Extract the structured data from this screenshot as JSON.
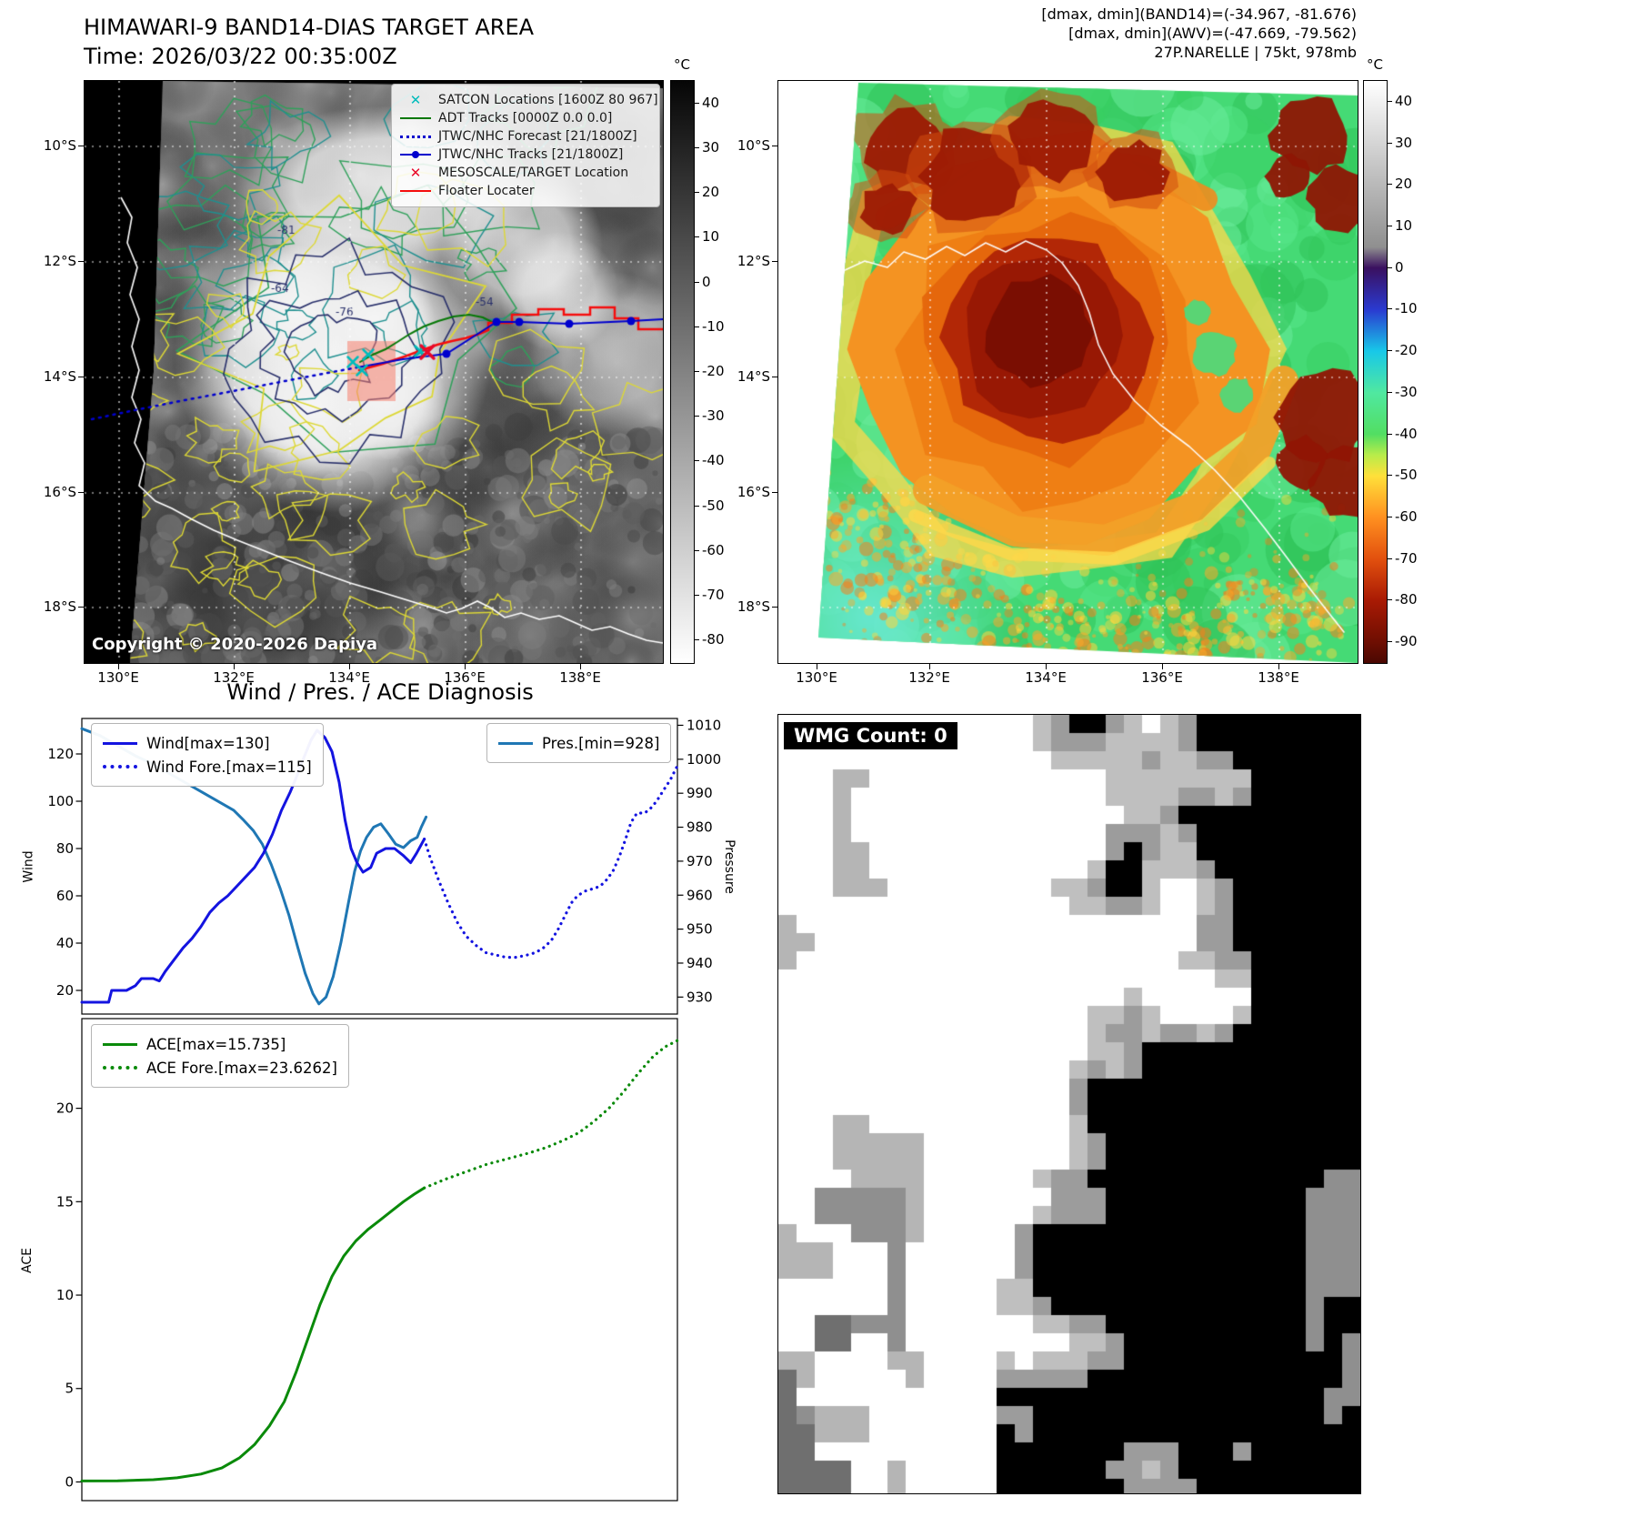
{
  "colors": {
    "wind": "#1414e0",
    "pressure": "#1f77b4",
    "ace": "#0a8a0a",
    "satcon": "#00bcbc",
    "adt_track": "#067806",
    "jtwc": "#0000cd",
    "meso_target": "#e8082a",
    "floater": "#f50d0d",
    "target_area_fill": "#f57f6e"
  },
  "panel_tl": {
    "title": "HIMAWARI-9 BAND14-DIAS TARGET AREA",
    "subtitle": "Time: 2026/03/22 00:35:00Z",
    "copyright": "Copyright © 2020-2026 Dapiya",
    "lat_ticks": [
      "10°S",
      "12°S",
      "14°S",
      "16°S",
      "18°S"
    ],
    "lon_ticks": [
      "130°E",
      "132°E",
      "134°E",
      "136°E",
      "138°E"
    ],
    "contour_labels": [
      "-64",
      "-76",
      "-54",
      "-81"
    ],
    "colorbar": {
      "unit": "°C",
      "ticks": [
        40,
        30,
        20,
        10,
        0,
        -10,
        -20,
        -30,
        -40,
        -50,
        -60,
        -70,
        -80
      ],
      "stops": [
        [
          45,
          "#060606"
        ],
        [
          -85,
          "#ffffff"
        ]
      ]
    },
    "legend": [
      {
        "label": "SATCON Locations [1600Z 80 967]",
        "marker": "x",
        "color": "#00bcbc"
      },
      {
        "label": "ADT Tracks [0000Z 0.0 0.0]",
        "marker": "line",
        "color": "#067806"
      },
      {
        "label": "JTWC/NHC Forecast [21/1800Z]",
        "marker": "dotted",
        "color": "#0000cd"
      },
      {
        "label": "JTWC/NHC Tracks [21/1800Z]",
        "marker": "line-dot",
        "color": "#0000cd"
      },
      {
        "label": "MESOSCALE/TARGET Location",
        "marker": "x",
        "color": "#e8082a"
      },
      {
        "label": "Floater Locater",
        "marker": "line",
        "color": "#f50d0d"
      }
    ]
  },
  "panel_tr": {
    "annotation_line1": "[dmax, dmin](BAND14)=(-34.967, -81.676)",
    "annotation_line2": "[dmax, dmin](AWV)=(-47.669, -79.562)",
    "annotation_line3": "27P.NARELLE | 75kt, 978mb",
    "lat_ticks": [
      "10°S",
      "12°S",
      "14°S",
      "16°S",
      "18°S"
    ],
    "lon_ticks": [
      "130°E",
      "132°E",
      "134°E",
      "136°E",
      "138°E"
    ],
    "colorbar": {
      "unit": "°C",
      "ticks": [
        40,
        30,
        20,
        10,
        0,
        -10,
        -20,
        -30,
        -40,
        -50,
        -60,
        -70,
        -80,
        -90
      ],
      "stops": [
        [
          45,
          "#ffffff"
        ],
        [
          5,
          "#8f8f8f"
        ],
        [
          0,
          "#3a1060"
        ],
        [
          -10,
          "#2a3ad0"
        ],
        [
          -20,
          "#18c8e8"
        ],
        [
          -30,
          "#50e8a0"
        ],
        [
          -40,
          "#52de62"
        ],
        [
          -45,
          "#b8ec4a"
        ],
        [
          -50,
          "#ffe03a"
        ],
        [
          -60,
          "#ff9020"
        ],
        [
          -70,
          "#e2500e"
        ],
        [
          -80,
          "#a81a04"
        ],
        [
          -90,
          "#6e0e02"
        ],
        [
          -95,
          "#4a0802"
        ]
      ]
    }
  },
  "panel_bl": {
    "title": "Wind / Pres. / ACE Diagnosis",
    "wind_ylabel": "Wind",
    "pressure_ylabel": "Pressure",
    "ace_ylabel": "ACE",
    "legend_wind": "Wind[max=130]",
    "legend_wind_fore": "Wind Fore.[max=115]",
    "legend_pres": "Pres.[min=928]",
    "legend_ace": "ACE[max=15.735]",
    "legend_ace_fore": "ACE Fore.[max=23.6262]",
    "wind_yticks": [
      20,
      40,
      60,
      80,
      100,
      120
    ],
    "pres_yticks": [
      930,
      940,
      950,
      960,
      970,
      980,
      990,
      1000,
      1010
    ],
    "ace_yticks": [
      0,
      5,
      10,
      15,
      20
    ]
  },
  "panel_br": {
    "label": "WMG Count: 0"
  },
  "chart_data": [
    {
      "type": "line",
      "title": "Wind / Pres. / ACE Diagnosis",
      "x_axis": "time (tick labels not shown)",
      "ylabel_left": "Wind",
      "ylabel_right": "Pressure",
      "ylim_left": [
        10,
        135
      ],
      "ylim_right": [
        925,
        1012
      ],
      "yticks_left": [
        20,
        40,
        60,
        80,
        100,
        120
      ],
      "yticks_right": [
        930,
        940,
        950,
        960,
        970,
        980,
        990,
        1000,
        1010
      ],
      "legend_position": "upper left / upper right",
      "series": [
        {
          "name": "Pres.[min=928]",
          "style": "solid",
          "axis": "right",
          "color": "#1f77b4",
          "points": [
            [
              0,
              1009
            ],
            [
              0.03,
              1007
            ],
            [
              0.06,
              1004
            ],
            [
              0.09,
              1001
            ],
            [
              0.115,
              999
            ],
            [
              0.135,
              997
            ],
            [
              0.155,
              995
            ],
            [
              0.175,
              993
            ],
            [
              0.195,
              991
            ],
            [
              0.215,
              989
            ],
            [
              0.235,
              987
            ],
            [
              0.255,
              985
            ],
            [
              0.272,
              982
            ],
            [
              0.288,
              979
            ],
            [
              0.303,
              975
            ],
            [
              0.318,
              969
            ],
            [
              0.333,
              962
            ],
            [
              0.348,
              954
            ],
            [
              0.362,
              945
            ],
            [
              0.375,
              937
            ],
            [
              0.388,
              931
            ],
            [
              0.398,
              928
            ],
            [
              0.41,
              930
            ],
            [
              0.422,
              936
            ],
            [
              0.435,
              946
            ],
            [
              0.448,
              958
            ],
            [
              0.458,
              967
            ],
            [
              0.468,
              973
            ],
            [
              0.478,
              977
            ],
            [
              0.49,
              980
            ],
            [
              0.502,
              981
            ],
            [
              0.515,
              978
            ],
            [
              0.527,
              975
            ],
            [
              0.54,
              974
            ],
            [
              0.552,
              976
            ],
            [
              0.563,
              977
            ],
            [
              0.57,
              980
            ],
            [
              0.578,
              983
            ]
          ]
        },
        {
          "name": "Wind[max=130]",
          "style": "solid",
          "axis": "left",
          "color": "#1414e0",
          "points": [
            [
              0,
              15
            ],
            [
              0.025,
              15
            ],
            [
              0.045,
              15
            ],
            [
              0.05,
              20
            ],
            [
              0.075,
              20
            ],
            [
              0.09,
              22
            ],
            [
              0.1,
              25
            ],
            [
              0.12,
              25
            ],
            [
              0.13,
              24
            ],
            [
              0.14,
              28
            ],
            [
              0.155,
              33
            ],
            [
              0.17,
              38
            ],
            [
              0.185,
              42
            ],
            [
              0.2,
              47
            ],
            [
              0.215,
              53
            ],
            [
              0.23,
              57
            ],
            [
              0.245,
              60
            ],
            [
              0.26,
              64
            ],
            [
              0.275,
              68
            ],
            [
              0.29,
              72
            ],
            [
              0.305,
              78
            ],
            [
              0.32,
              86
            ],
            [
              0.335,
              96
            ],
            [
              0.35,
              104
            ],
            [
              0.36,
              110
            ],
            [
              0.372,
              118
            ],
            [
              0.385,
              126
            ],
            [
              0.395,
              130
            ],
            [
              0.408,
              127
            ],
            [
              0.42,
              121
            ],
            [
              0.432,
              108
            ],
            [
              0.442,
              92
            ],
            [
              0.452,
              80
            ],
            [
              0.462,
              74
            ],
            [
              0.472,
              70
            ],
            [
              0.485,
              72
            ],
            [
              0.495,
              78
            ],
            [
              0.51,
              80
            ],
            [
              0.525,
              80
            ],
            [
              0.54,
              77
            ],
            [
              0.552,
              74
            ],
            [
              0.562,
              78
            ],
            [
              0.575,
              84
            ]
          ]
        },
        {
          "name": "Wind Fore.[max=115]",
          "style": "dotted",
          "axis": "left",
          "color": "#1414e0",
          "points": [
            [
              0.575,
              84
            ],
            [
              0.585,
              76
            ],
            [
              0.6,
              66
            ],
            [
              0.615,
              57
            ],
            [
              0.63,
              49
            ],
            [
              0.645,
              43
            ],
            [
              0.662,
              39
            ],
            [
              0.678,
              36
            ],
            [
              0.695,
              35
            ],
            [
              0.712,
              34
            ],
            [
              0.73,
              34
            ],
            [
              0.748,
              35
            ],
            [
              0.762,
              36
            ],
            [
              0.775,
              38
            ],
            [
              0.788,
              41
            ],
            [
              0.8,
              46
            ],
            [
              0.812,
              52
            ],
            [
              0.822,
              57
            ],
            [
              0.832,
              60
            ],
            [
              0.845,
              62
            ],
            [
              0.858,
              63
            ],
            [
              0.87,
              64
            ],
            [
              0.882,
              67
            ],
            [
              0.893,
              71
            ],
            [
              0.903,
              77
            ],
            [
              0.913,
              84
            ],
            [
              0.922,
              91
            ],
            [
              0.932,
              95
            ],
            [
              0.945,
              95
            ],
            [
              0.955,
              97
            ],
            [
              0.965,
              100
            ],
            [
              0.975,
              104
            ],
            [
              0.988,
              109
            ],
            [
              1,
              115
            ]
          ]
        }
      ]
    },
    {
      "type": "line",
      "x_axis": "time (tick labels not shown)",
      "ylabel_left": "ACE",
      "ylim_left": [
        -1,
        24.8
      ],
      "yticks_left": [
        0,
        5,
        10,
        15,
        20
      ],
      "legend_position": "upper left",
      "series": [
        {
          "name": "ACE[max=15.735]",
          "style": "solid",
          "axis": "left",
          "color": "#0a8a0a",
          "points": [
            [
              0,
              0.05
            ],
            [
              0.06,
              0.06
            ],
            [
              0.12,
              0.12
            ],
            [
              0.16,
              0.22
            ],
            [
              0.2,
              0.42
            ],
            [
              0.235,
              0.75
            ],
            [
              0.265,
              1.3
            ],
            [
              0.29,
              2
            ],
            [
              0.315,
              3
            ],
            [
              0.34,
              4.3
            ],
            [
              0.36,
              5.9
            ],
            [
              0.38,
              7.7
            ],
            [
              0.4,
              9.5
            ],
            [
              0.42,
              11
            ],
            [
              0.44,
              12.1
            ],
            [
              0.46,
              12.9
            ],
            [
              0.48,
              13.5
            ],
            [
              0.5,
              14
            ],
            [
              0.52,
              14.5
            ],
            [
              0.54,
              15
            ],
            [
              0.558,
              15.4
            ],
            [
              0.575,
              15.735
            ]
          ]
        },
        {
          "name": "ACE Fore.[max=23.6262]",
          "style": "dotted",
          "axis": "left",
          "color": "#0a8a0a",
          "points": [
            [
              0.575,
              15.735
            ],
            [
              0.61,
              16.2
            ],
            [
              0.645,
              16.6
            ],
            [
              0.68,
              17
            ],
            [
              0.715,
              17.3
            ],
            [
              0.75,
              17.6
            ],
            [
              0.78,
              17.9
            ],
            [
              0.81,
              18.3
            ],
            [
              0.835,
              18.7
            ],
            [
              0.86,
              19.3
            ],
            [
              0.885,
              20
            ],
            [
              0.91,
              20.9
            ],
            [
              0.935,
              21.9
            ],
            [
              0.96,
              22.8
            ],
            [
              0.98,
              23.3
            ],
            [
              1,
              23.6262
            ]
          ]
        }
      ]
    }
  ]
}
